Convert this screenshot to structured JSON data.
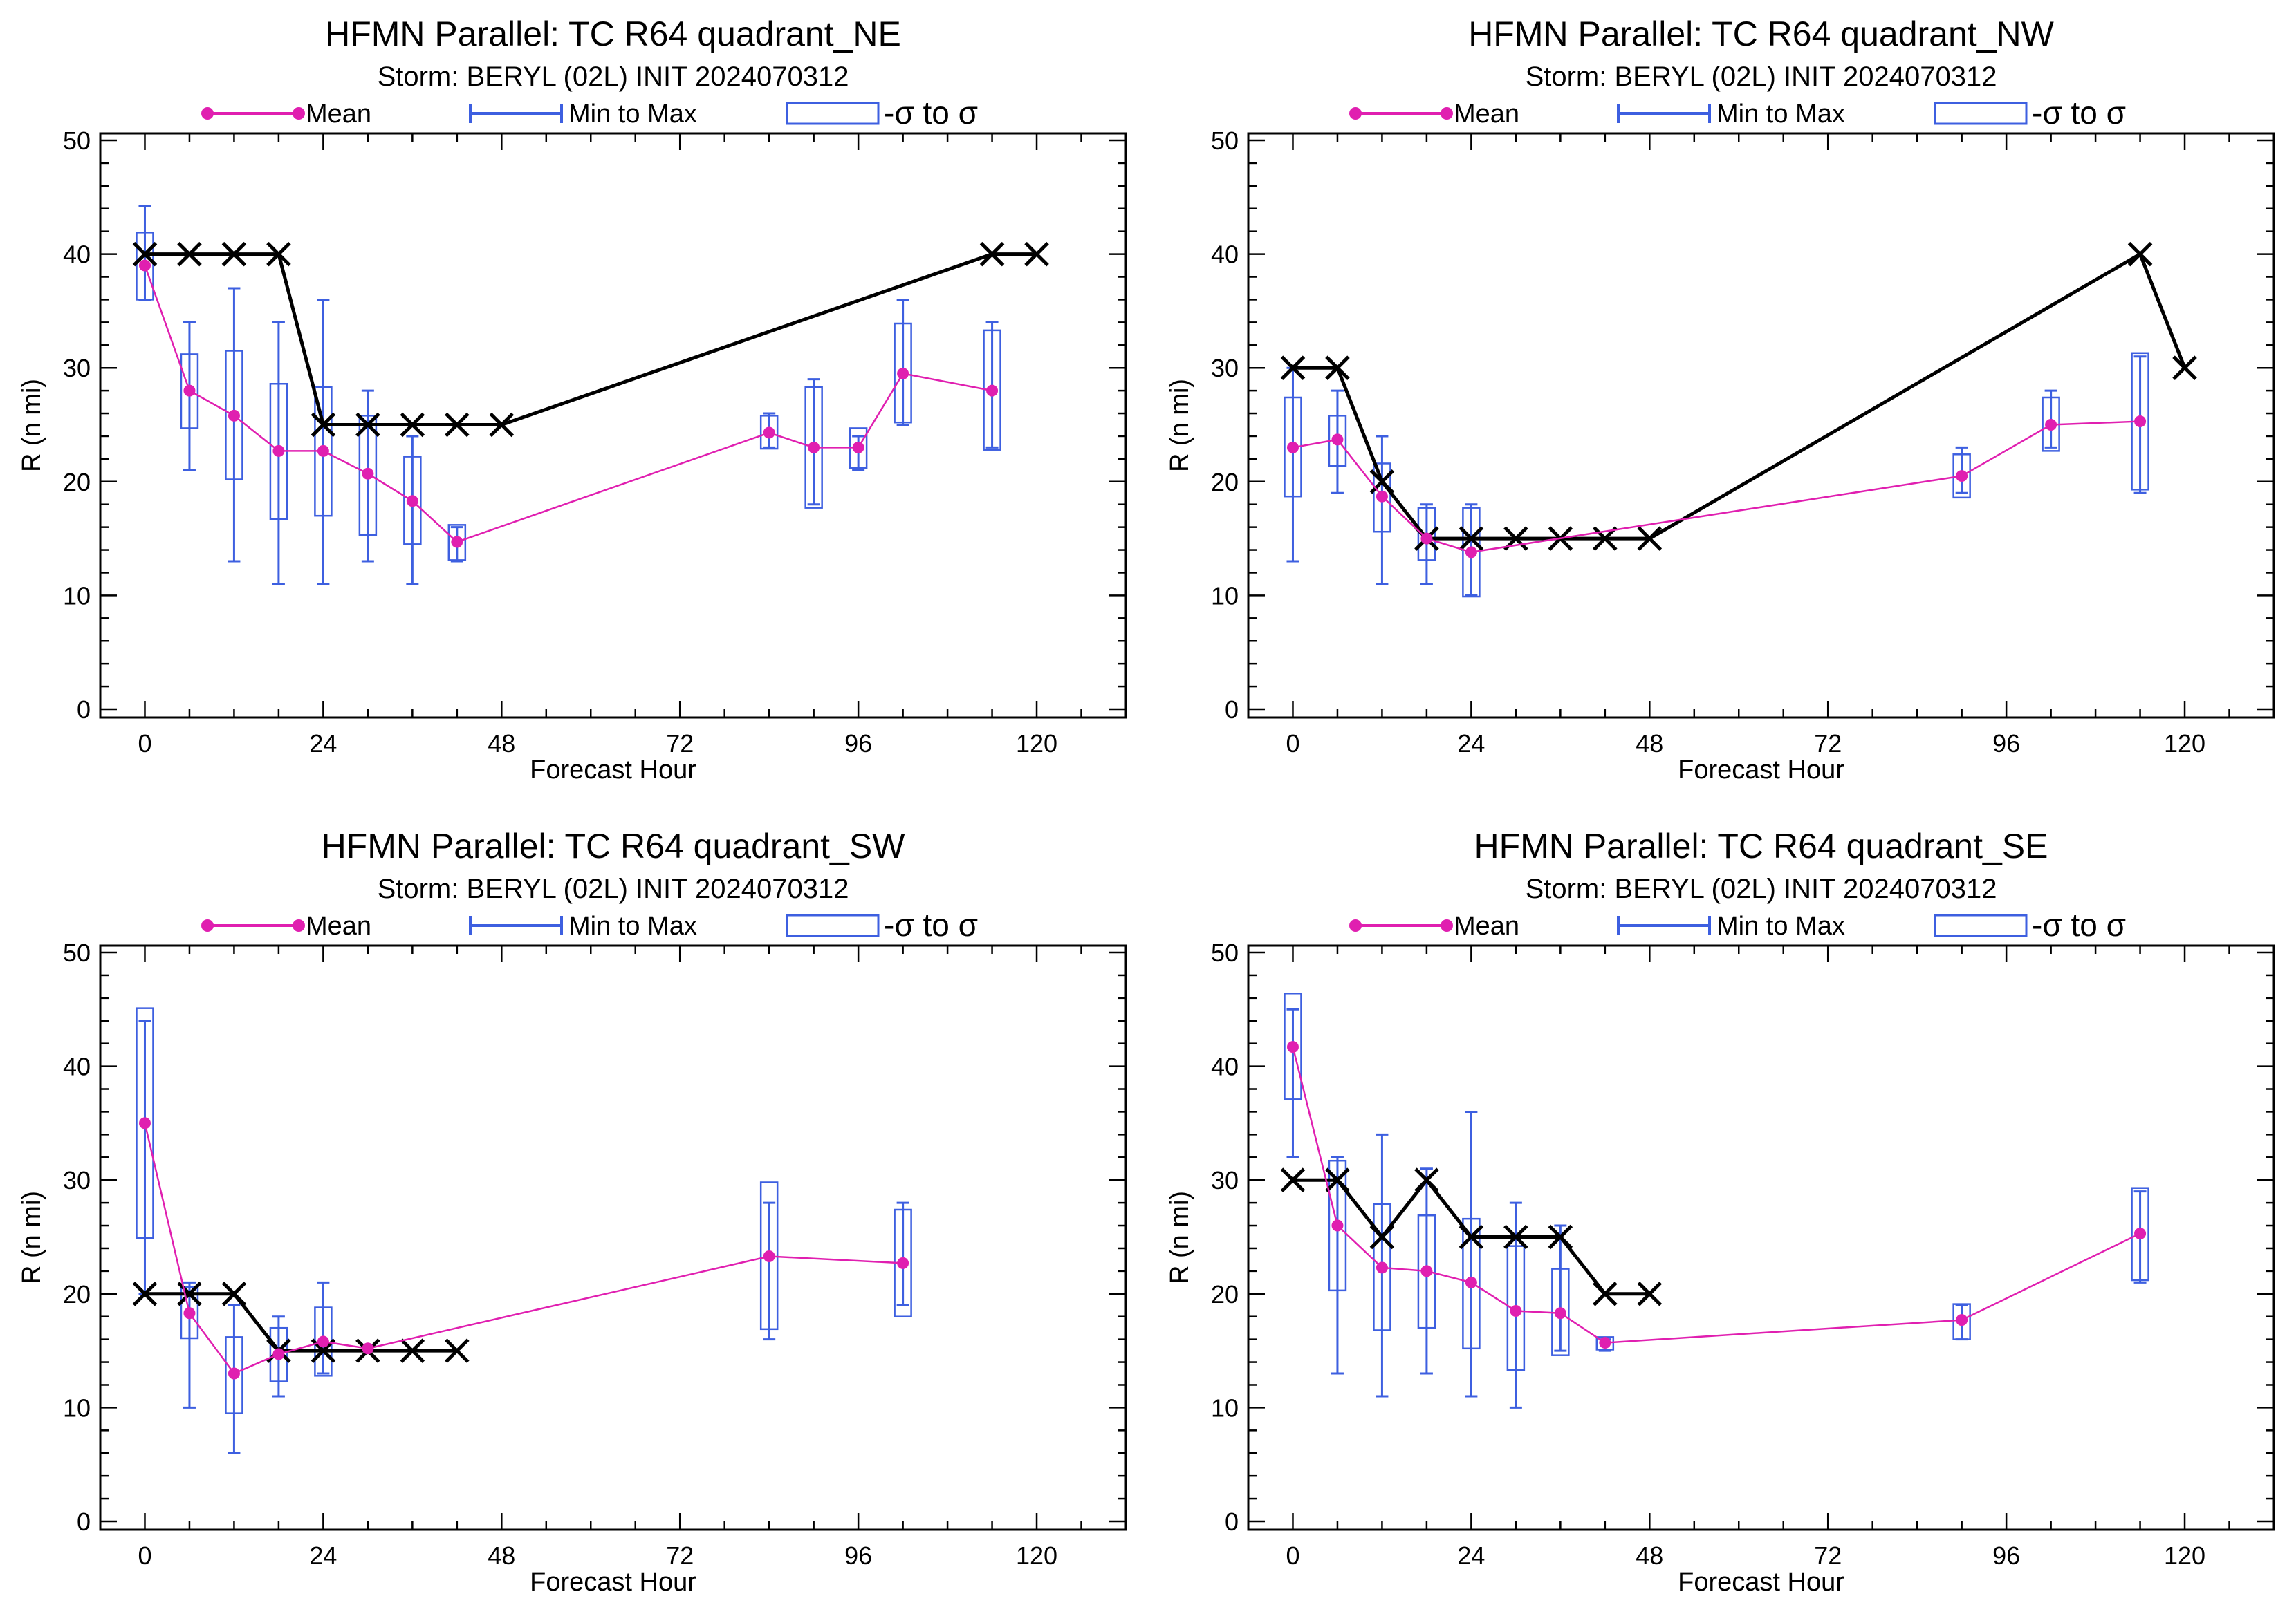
{
  "figure_colors": {
    "mean": "#e01fb0",
    "box": "#3d5fe0",
    "best_track": "#000000",
    "frame": "#000000"
  },
  "legend": {
    "mean": "Mean",
    "minmax": "Min to Max",
    "sigma": "-σ to σ"
  },
  "chart_data": [
    {
      "type": "line",
      "title": "HFMN Parallel: TC  R64 quadrant_NE",
      "subtitle": "Storm: BERYL (02L) INIT 2024070312",
      "xlabel": "Forecast Hour",
      "ylabel": "R (n mi)",
      "xlim": [
        -6,
        132
      ],
      "ylim": [
        0,
        50
      ],
      "xticks": [
        0,
        24,
        48,
        72,
        96,
        120
      ],
      "yticks": [
        0,
        10,
        20,
        30,
        40,
        50
      ],
      "mean": [
        [
          0,
          39
        ],
        [
          6,
          28
        ],
        [
          12,
          25.8
        ],
        [
          18,
          22.7
        ],
        [
          24,
          22.7
        ],
        [
          30,
          20.7
        ],
        [
          36,
          18.3
        ],
        [
          42,
          14.7
        ],
        [
          84,
          24.3
        ],
        [
          90,
          23
        ],
        [
          96,
          23
        ],
        [
          102,
          29.5
        ],
        [
          114,
          28
        ]
      ],
      "boxes": [
        {
          "x": 0,
          "min": 36,
          "max": 44.2,
          "lo": 36,
          "hi": 41.9
        },
        {
          "x": 6,
          "min": 21,
          "max": 34,
          "lo": 24.7,
          "hi": 31.2
        },
        {
          "x": 12,
          "min": 13,
          "max": 37,
          "lo": 20.2,
          "hi": 31.5
        },
        {
          "x": 18,
          "min": 11,
          "max": 34,
          "lo": 16.7,
          "hi": 28.6
        },
        {
          "x": 24,
          "min": 11,
          "max": 36,
          "lo": 17,
          "hi": 28.3
        },
        {
          "x": 30,
          "min": 13,
          "max": 28,
          "lo": 15.3,
          "hi": 25.8
        },
        {
          "x": 36,
          "min": 11,
          "max": 24,
          "lo": 14.5,
          "hi": 22.2
        },
        {
          "x": 42,
          "min": 13,
          "max": 16,
          "lo": 13.1,
          "hi": 16.2
        },
        {
          "x": 84,
          "min": 23,
          "max": 26,
          "lo": 22.9,
          "hi": 25.8
        },
        {
          "x": 90,
          "min": 18,
          "max": 29,
          "lo": 17.7,
          "hi": 28.3
        },
        {
          "x": 96,
          "min": 21,
          "max": 24,
          "lo": 21.2,
          "hi": 24.7
        },
        {
          "x": 102,
          "min": 25,
          "max": 36,
          "lo": 25.2,
          "hi": 33.9
        },
        {
          "x": 114,
          "min": 23,
          "max": 34,
          "lo": 22.8,
          "hi": 33.3
        }
      ],
      "best_track": [
        [
          0,
          40
        ],
        [
          6,
          40
        ],
        [
          12,
          40
        ],
        [
          18,
          40
        ],
        [
          24,
          25
        ],
        [
          30,
          25
        ],
        [
          36,
          25
        ],
        [
          42,
          25
        ],
        [
          48,
          25
        ],
        [
          114,
          40
        ],
        [
          120,
          40
        ]
      ]
    },
    {
      "type": "line",
      "title": "HFMN Parallel: TC  R64 quadrant_NW",
      "subtitle": "Storm: BERYL (02L) INIT 2024070312",
      "xlabel": "Forecast Hour",
      "ylabel": "R (n mi)",
      "xlim": [
        -6,
        132
      ],
      "ylim": [
        0,
        50
      ],
      "xticks": [
        0,
        24,
        48,
        72,
        96,
        120
      ],
      "yticks": [
        0,
        10,
        20,
        30,
        40,
        50
      ],
      "mean": [
        [
          0,
          23
        ],
        [
          6,
          23.7
        ],
        [
          12,
          18.7
        ],
        [
          18,
          15
        ],
        [
          24,
          13.8
        ],
        [
          90,
          20.5
        ],
        [
          102,
          25
        ],
        [
          114,
          25.3
        ]
      ],
      "boxes": [
        {
          "x": 0,
          "min": 13,
          "max": 30,
          "lo": 18.7,
          "hi": 27.4
        },
        {
          "x": 6,
          "min": 19,
          "max": 28,
          "lo": 21.4,
          "hi": 25.8
        },
        {
          "x": 12,
          "min": 11,
          "max": 24,
          "lo": 15.6,
          "hi": 21.6
        },
        {
          "x": 18,
          "min": 11,
          "max": 18,
          "lo": 13.1,
          "hi": 17.7
        },
        {
          "x": 24,
          "min": 10,
          "max": 18,
          "lo": 9.9,
          "hi": 17.7
        },
        {
          "x": 90,
          "min": 19,
          "max": 23,
          "lo": 18.6,
          "hi": 22.4
        },
        {
          "x": 102,
          "min": 23,
          "max": 28,
          "lo": 22.7,
          "hi": 27.4
        },
        {
          "x": 114,
          "min": 19,
          "max": 31,
          "lo": 19.3,
          "hi": 31.3
        }
      ],
      "best_track": [
        [
          0,
          30
        ],
        [
          6,
          30
        ],
        [
          12,
          20
        ],
        [
          18,
          15
        ],
        [
          24,
          15
        ],
        [
          30,
          15
        ],
        [
          36,
          15
        ],
        [
          42,
          15
        ],
        [
          48,
          15
        ],
        [
          114,
          40
        ],
        [
          120,
          30
        ]
      ]
    },
    {
      "type": "line",
      "title": "HFMN Parallel: TC  R64 quadrant_SW",
      "subtitle": "Storm: BERYL (02L) INIT 2024070312",
      "xlabel": "Forecast Hour",
      "ylabel": "R (n mi)",
      "xlim": [
        -6,
        132
      ],
      "ylim": [
        0,
        50
      ],
      "xticks": [
        0,
        24,
        48,
        72,
        96,
        120
      ],
      "yticks": [
        0,
        10,
        20,
        30,
        40,
        50
      ],
      "mean": [
        [
          0,
          35
        ],
        [
          6,
          18.3
        ],
        [
          12,
          13
        ],
        [
          18,
          14.7
        ],
        [
          24,
          15.8
        ],
        [
          30,
          15.2
        ],
        [
          84,
          23.3
        ],
        [
          102,
          22.7
        ]
      ],
      "boxes": [
        {
          "x": 0,
          "min": 20,
          "max": 44,
          "lo": 24.9,
          "hi": 45.1
        },
        {
          "x": 6,
          "min": 10,
          "max": 21,
          "lo": 16.1,
          "hi": 20.6
        },
        {
          "x": 12,
          "min": 6,
          "max": 19,
          "lo": 9.5,
          "hi": 16.2
        },
        {
          "x": 18,
          "min": 11,
          "max": 18,
          "lo": 12.3,
          "hi": 17
        },
        {
          "x": 24,
          "min": 13,
          "max": 21,
          "lo": 12.8,
          "hi": 18.8
        },
        {
          "x": 84,
          "min": 16,
          "max": 28,
          "lo": 16.9,
          "hi": 29.8
        },
        {
          "x": 102,
          "min": 19,
          "max": 28,
          "lo": 18,
          "hi": 27.4
        }
      ],
      "best_track": [
        [
          0,
          20
        ],
        [
          6,
          20
        ],
        [
          12,
          20
        ],
        [
          18,
          15
        ],
        [
          24,
          15
        ],
        [
          30,
          15
        ],
        [
          36,
          15
        ],
        [
          42,
          15
        ]
      ]
    },
    {
      "type": "line",
      "title": "HFMN Parallel: TC  R64 quadrant_SE",
      "subtitle": "Storm: BERYL (02L) INIT 2024070312",
      "xlabel": "Forecast Hour",
      "ylabel": "R (n mi)",
      "xlim": [
        -6,
        132
      ],
      "ylim": [
        0,
        50
      ],
      "xticks": [
        0,
        24,
        48,
        72,
        96,
        120
      ],
      "yticks": [
        0,
        10,
        20,
        30,
        40,
        50
      ],
      "mean": [
        [
          0,
          41.7
        ],
        [
          6,
          26
        ],
        [
          12,
          22.3
        ],
        [
          18,
          22
        ],
        [
          24,
          21
        ],
        [
          30,
          18.5
        ],
        [
          36,
          18.3
        ],
        [
          42,
          15.7
        ],
        [
          90,
          17.7
        ],
        [
          114,
          25.3
        ]
      ],
      "boxes": [
        {
          "x": 0,
          "min": 32,
          "max": 45,
          "lo": 37.1,
          "hi": 46.4
        },
        {
          "x": 6,
          "min": 13,
          "max": 32,
          "lo": 20.3,
          "hi": 31.7
        },
        {
          "x": 12,
          "min": 11,
          "max": 34,
          "lo": 16.8,
          "hi": 27.9
        },
        {
          "x": 18,
          "min": 13,
          "max": 31,
          "lo": 17,
          "hi": 26.9
        },
        {
          "x": 24,
          "min": 11,
          "max": 36,
          "lo": 15.2,
          "hi": 26.6
        },
        {
          "x": 30,
          "min": 10,
          "max": 28,
          "lo": 13.3,
          "hi": 24.2
        },
        {
          "x": 36,
          "min": 15,
          "max": 26,
          "lo": 14.6,
          "hi": 22.2
        },
        {
          "x": 42,
          "min": 15,
          "max": 16,
          "lo": 15.1,
          "hi": 16.2
        },
        {
          "x": 90,
          "min": 16,
          "max": 19,
          "lo": 16,
          "hi": 19.1
        },
        {
          "x": 114,
          "min": 21,
          "max": 29,
          "lo": 21.2,
          "hi": 29.3
        }
      ],
      "best_track": [
        [
          0,
          30
        ],
        [
          6,
          30
        ],
        [
          12,
          25
        ],
        [
          18,
          30
        ],
        [
          24,
          25
        ],
        [
          30,
          25
        ],
        [
          36,
          25
        ],
        [
          42,
          20
        ],
        [
          48,
          20
        ]
      ]
    }
  ]
}
